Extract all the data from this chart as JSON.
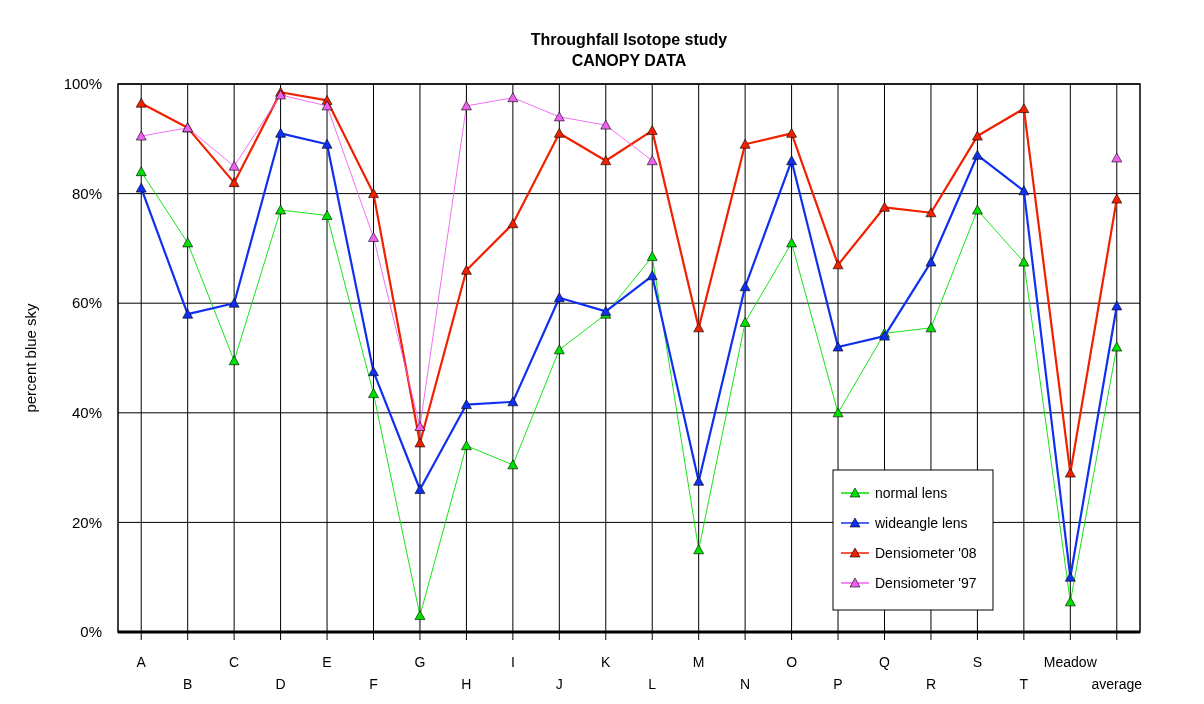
{
  "chart_data": {
    "type": "line",
    "title": "Throughfall  Isotope  study",
    "subtitle": "CANOPY  DATA",
    "ylabel": "percent blue sky",
    "categories": [
      "A",
      "B",
      "C",
      "D",
      "E",
      "F",
      "G",
      "H",
      "I",
      "J",
      "K",
      "L",
      "M",
      "N",
      "O",
      "P",
      "Q",
      "R",
      "S",
      "T",
      "Meadow",
      "average"
    ],
    "ylim": [
      0,
      100
    ],
    "yticks": [
      {
        "value": 0,
        "label": "0%"
      },
      {
        "value": 20,
        "label": "20%"
      },
      {
        "value": 40,
        "label": "40%"
      },
      {
        "value": 60,
        "label": "60%"
      },
      {
        "value": 80,
        "label": "80%"
      },
      {
        "value": 100,
        "label": "100%"
      }
    ],
    "grid": true,
    "legend": "bottom right",
    "marker": "triangle",
    "series": [
      {
        "name": "normal lens",
        "color": "#00e000",
        "values": [
          84,
          71,
          49.5,
          77,
          76,
          43.5,
          3,
          34,
          30.5,
          51.5,
          58,
          68.5,
          15,
          56.5,
          71,
          40,
          54.5,
          55.5,
          77,
          67.5,
          5.5,
          52
        ]
      },
      {
        "name": "wideangle lens",
        "color": "#1030f0",
        "values": [
          81,
          58,
          60,
          91,
          89,
          47.5,
          26,
          41.5,
          42,
          61,
          58.5,
          65,
          27.5,
          63,
          86,
          52,
          54,
          67.5,
          87,
          80.5,
          10,
          59.5
        ]
      },
      {
        "name": "Densiometer '08",
        "color": "#f02000",
        "values": [
          96.5,
          92,
          82,
          98.5,
          97,
          80,
          34.5,
          66,
          74.5,
          91,
          86,
          91.5,
          55.5,
          89,
          91,
          67,
          77.5,
          76.5,
          90.5,
          95.5,
          29,
          79
        ]
      },
      {
        "name": "Densiometer '97",
        "color": "#f060f0",
        "values": [
          90.5,
          92,
          85,
          98,
          96,
          72,
          37.5,
          96,
          97.5,
          94,
          92.5,
          86,
          null,
          null,
          null,
          null,
          null,
          null,
          null,
          null,
          null,
          86.5
        ]
      }
    ]
  }
}
